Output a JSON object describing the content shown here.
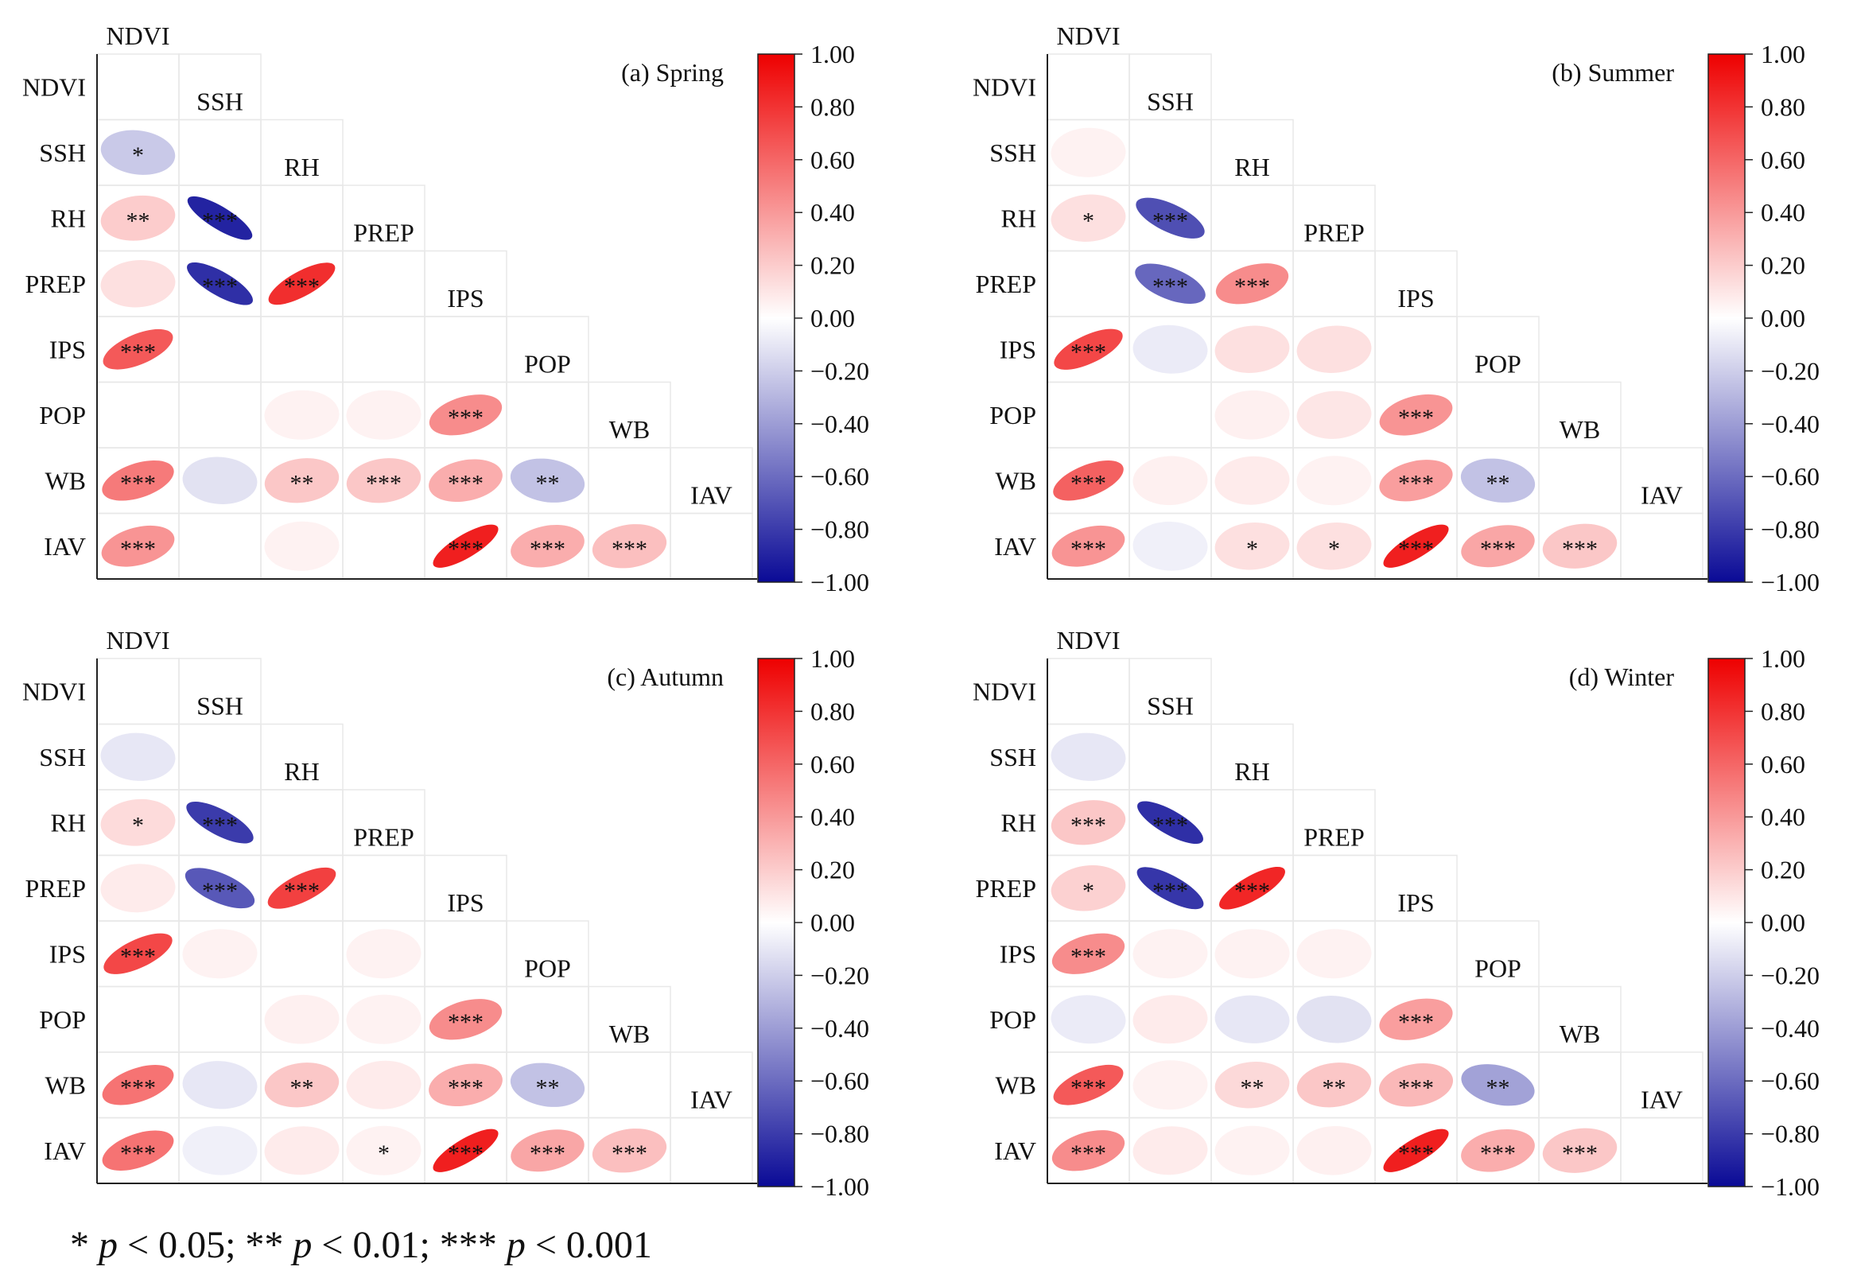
{
  "chart_data": {
    "type": "heatmap",
    "variables": [
      "NDVI",
      "SSH",
      "RH",
      "PREP",
      "IPS",
      "POP",
      "WB",
      "IAV"
    ],
    "colorbar": {
      "ticks": [
        "1.00",
        "0.80",
        "0.60",
        "0.40",
        "0.20",
        "0.00",
        "−0.20",
        "−0.40",
        "−0.60",
        "−0.80",
        "−1.00"
      ],
      "range": [
        -1.0,
        1.0
      ],
      "neg_color": "#0a0a96",
      "zero_color": "#ffffff",
      "pos_color": "#ee0000"
    },
    "panels": [
      {
        "title": "(a) Spring",
        "cells": [
          {
            "row": 1,
            "col": 0,
            "r": -0.22,
            "sig": "*"
          },
          {
            "row": 2,
            "col": 0,
            "r": 0.2,
            "sig": "**"
          },
          {
            "row": 2,
            "col": 1,
            "r": -0.9,
            "sig": "***"
          },
          {
            "row": 3,
            "col": 0,
            "r": 0.12,
            "sig": ""
          },
          {
            "row": 3,
            "col": 1,
            "r": -0.85,
            "sig": "***"
          },
          {
            "row": 3,
            "col": 2,
            "r": 0.82,
            "sig": "***"
          },
          {
            "row": 4,
            "col": 0,
            "r": 0.65,
            "sig": "***"
          },
          {
            "row": 5,
            "col": 2,
            "r": 0.05,
            "sig": ""
          },
          {
            "row": 5,
            "col": 3,
            "r": 0.05,
            "sig": ""
          },
          {
            "row": 5,
            "col": 4,
            "r": 0.45,
            "sig": "***"
          },
          {
            "row": 6,
            "col": 0,
            "r": 0.52,
            "sig": "***"
          },
          {
            "row": 6,
            "col": 1,
            "r": -0.12,
            "sig": ""
          },
          {
            "row": 6,
            "col": 2,
            "r": 0.22,
            "sig": "**"
          },
          {
            "row": 6,
            "col": 3,
            "r": 0.22,
            "sig": "***"
          },
          {
            "row": 6,
            "col": 4,
            "r": 0.32,
            "sig": "***"
          },
          {
            "row": 6,
            "col": 5,
            "r": -0.25,
            "sig": "**"
          },
          {
            "row": 7,
            "col": 0,
            "r": 0.42,
            "sig": "***"
          },
          {
            "row": 7,
            "col": 2,
            "r": 0.05,
            "sig": ""
          },
          {
            "row": 7,
            "col": 4,
            "r": 0.88,
            "sig": "***"
          },
          {
            "row": 7,
            "col": 5,
            "r": 0.32,
            "sig": "***"
          },
          {
            "row": 7,
            "col": 6,
            "r": 0.25,
            "sig": "***"
          }
        ]
      },
      {
        "title": "(b) Summer",
        "cells": [
          {
            "row": 1,
            "col": 0,
            "r": 0.05,
            "sig": ""
          },
          {
            "row": 2,
            "col": 0,
            "r": 0.12,
            "sig": "*"
          },
          {
            "row": 2,
            "col": 1,
            "r": -0.72,
            "sig": "***"
          },
          {
            "row": 3,
            "col": 1,
            "r": -0.62,
            "sig": "***"
          },
          {
            "row": 3,
            "col": 2,
            "r": 0.45,
            "sig": "***"
          },
          {
            "row": 4,
            "col": 0,
            "r": 0.72,
            "sig": "***"
          },
          {
            "row": 4,
            "col": 1,
            "r": -0.08,
            "sig": ""
          },
          {
            "row": 4,
            "col": 2,
            "r": 0.12,
            "sig": ""
          },
          {
            "row": 4,
            "col": 3,
            "r": 0.12,
            "sig": ""
          },
          {
            "row": 5,
            "col": 2,
            "r": 0.06,
            "sig": ""
          },
          {
            "row": 5,
            "col": 3,
            "r": 0.1,
            "sig": ""
          },
          {
            "row": 5,
            "col": 4,
            "r": 0.42,
            "sig": "***"
          },
          {
            "row": 6,
            "col": 0,
            "r": 0.62,
            "sig": "***"
          },
          {
            "row": 6,
            "col": 1,
            "r": 0.06,
            "sig": ""
          },
          {
            "row": 6,
            "col": 2,
            "r": 0.08,
            "sig": ""
          },
          {
            "row": 6,
            "col": 3,
            "r": 0.05,
            "sig": ""
          },
          {
            "row": 6,
            "col": 4,
            "r": 0.38,
            "sig": "***"
          },
          {
            "row": 6,
            "col": 5,
            "r": -0.25,
            "sig": "**"
          },
          {
            "row": 7,
            "col": 0,
            "r": 0.42,
            "sig": "***"
          },
          {
            "row": 7,
            "col": 1,
            "r": -0.06,
            "sig": ""
          },
          {
            "row": 7,
            "col": 2,
            "r": 0.12,
            "sig": "*"
          },
          {
            "row": 7,
            "col": 3,
            "r": 0.12,
            "sig": "*"
          },
          {
            "row": 7,
            "col": 4,
            "r": 0.88,
            "sig": "***"
          },
          {
            "row": 7,
            "col": 5,
            "r": 0.35,
            "sig": "***"
          },
          {
            "row": 7,
            "col": 6,
            "r": 0.22,
            "sig": "***"
          }
        ]
      },
      {
        "title": "(c) Autumn",
        "cells": [
          {
            "row": 1,
            "col": 0,
            "r": -0.1,
            "sig": ""
          },
          {
            "row": 2,
            "col": 0,
            "r": 0.14,
            "sig": "*"
          },
          {
            "row": 2,
            "col": 1,
            "r": -0.8,
            "sig": "***"
          },
          {
            "row": 3,
            "col": 0,
            "r": 0.08,
            "sig": ""
          },
          {
            "row": 3,
            "col": 1,
            "r": -0.68,
            "sig": "***"
          },
          {
            "row": 3,
            "col": 2,
            "r": 0.75,
            "sig": "***"
          },
          {
            "row": 4,
            "col": 0,
            "r": 0.72,
            "sig": "***"
          },
          {
            "row": 4,
            "col": 1,
            "r": 0.05,
            "sig": ""
          },
          {
            "row": 4,
            "col": 3,
            "r": 0.05,
            "sig": ""
          },
          {
            "row": 5,
            "col": 2,
            "r": 0.06,
            "sig": ""
          },
          {
            "row": 5,
            "col": 3,
            "r": 0.05,
            "sig": ""
          },
          {
            "row": 5,
            "col": 4,
            "r": 0.45,
            "sig": "***"
          },
          {
            "row": 6,
            "col": 0,
            "r": 0.55,
            "sig": "***"
          },
          {
            "row": 6,
            "col": 1,
            "r": -0.1,
            "sig": ""
          },
          {
            "row": 6,
            "col": 2,
            "r": 0.22,
            "sig": "**"
          },
          {
            "row": 6,
            "col": 3,
            "r": 0.08,
            "sig": ""
          },
          {
            "row": 6,
            "col": 4,
            "r": 0.32,
            "sig": "***"
          },
          {
            "row": 6,
            "col": 5,
            "r": -0.25,
            "sig": "**"
          },
          {
            "row": 7,
            "col": 0,
            "r": 0.55,
            "sig": "***"
          },
          {
            "row": 7,
            "col": 1,
            "r": -0.06,
            "sig": ""
          },
          {
            "row": 7,
            "col": 2,
            "r": 0.08,
            "sig": ""
          },
          {
            "row": 7,
            "col": 3,
            "r": 0.05,
            "sig": "*"
          },
          {
            "row": 7,
            "col": 4,
            "r": 0.88,
            "sig": "***"
          },
          {
            "row": 7,
            "col": 5,
            "r": 0.35,
            "sig": "***"
          },
          {
            "row": 7,
            "col": 6,
            "r": 0.25,
            "sig": "***"
          }
        ]
      },
      {
        "title": "(d) Winter",
        "cells": [
          {
            "row": 1,
            "col": 0,
            "r": -0.1,
            "sig": ""
          },
          {
            "row": 2,
            "col": 0,
            "r": 0.22,
            "sig": "***"
          },
          {
            "row": 2,
            "col": 1,
            "r": -0.85,
            "sig": "***"
          },
          {
            "row": 3,
            "col": 0,
            "r": 0.18,
            "sig": "*"
          },
          {
            "row": 3,
            "col": 1,
            "r": -0.82,
            "sig": "***"
          },
          {
            "row": 3,
            "col": 2,
            "r": 0.85,
            "sig": "***"
          },
          {
            "row": 4,
            "col": 0,
            "r": 0.45,
            "sig": "***"
          },
          {
            "row": 4,
            "col": 1,
            "r": 0.05,
            "sig": ""
          },
          {
            "row": 4,
            "col": 2,
            "r": 0.05,
            "sig": ""
          },
          {
            "row": 4,
            "col": 3,
            "r": 0.05,
            "sig": ""
          },
          {
            "row": 5,
            "col": 0,
            "r": -0.08,
            "sig": ""
          },
          {
            "row": 5,
            "col": 1,
            "r": 0.08,
            "sig": ""
          },
          {
            "row": 5,
            "col": 2,
            "r": -0.1,
            "sig": ""
          },
          {
            "row": 5,
            "col": 3,
            "r": -0.12,
            "sig": ""
          },
          {
            "row": 5,
            "col": 4,
            "r": 0.38,
            "sig": "***"
          },
          {
            "row": 6,
            "col": 0,
            "r": 0.65,
            "sig": "***"
          },
          {
            "row": 6,
            "col": 1,
            "r": 0.05,
            "sig": ""
          },
          {
            "row": 6,
            "col": 2,
            "r": 0.15,
            "sig": "**"
          },
          {
            "row": 6,
            "col": 3,
            "r": 0.22,
            "sig": "**"
          },
          {
            "row": 6,
            "col": 4,
            "r": 0.28,
            "sig": "***"
          },
          {
            "row": 6,
            "col": 5,
            "r": -0.38,
            "sig": "**"
          },
          {
            "row": 7,
            "col": 0,
            "r": 0.45,
            "sig": "***"
          },
          {
            "row": 7,
            "col": 1,
            "r": 0.08,
            "sig": ""
          },
          {
            "row": 7,
            "col": 2,
            "r": 0.05,
            "sig": ""
          },
          {
            "row": 7,
            "col": 3,
            "r": 0.06,
            "sig": ""
          },
          {
            "row": 7,
            "col": 4,
            "r": 0.88,
            "sig": "***"
          },
          {
            "row": 7,
            "col": 5,
            "r": 0.32,
            "sig": "***"
          },
          {
            "row": 7,
            "col": 6,
            "r": 0.22,
            "sig": "***"
          }
        ]
      }
    ],
    "significance_note": {
      "one": "* ",
      "two": "; ** ",
      "three": "; *** ",
      "p": "p",
      "t1": " < 0.05",
      "t2": " < 0.01",
      "t3": " < 0.001"
    }
  }
}
